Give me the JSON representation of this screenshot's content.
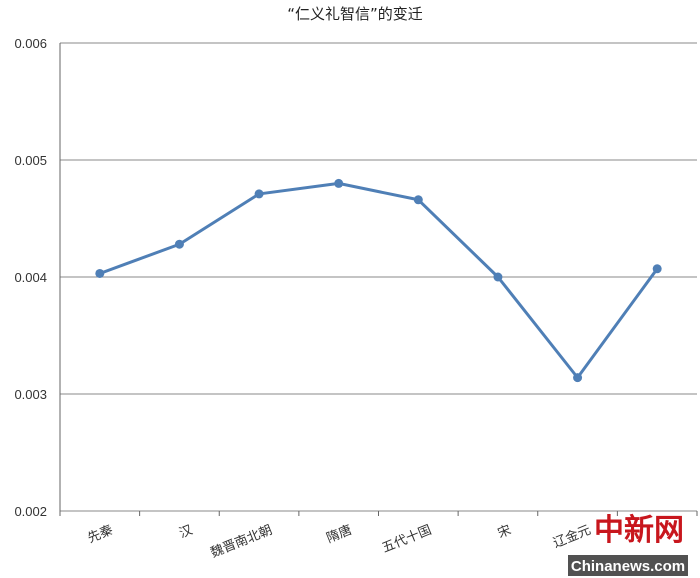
{
  "chart_data": {
    "type": "line",
    "title": "“仁义礼智信”的变迁",
    "xlabel": "",
    "ylabel": "",
    "categories": [
      "先秦",
      "汉",
      "魏晋南北朝",
      "隋唐",
      "五代十国",
      "宋",
      "辽金元",
      ""
    ],
    "y_ticks": [
      "0.002",
      "0.003",
      "0.004",
      "0.005",
      "0.006"
    ],
    "series": [
      {
        "values": [
          0.00403,
          0.00428,
          0.00471,
          0.0048,
          0.00466,
          0.004,
          0.00314,
          0.00407
        ]
      }
    ],
    "ylim": [
      0.002,
      0.006
    ],
    "grid": true,
    "legend": "none",
    "line_color": "#4f7fb6"
  },
  "watermark": {
    "cn_text": "中新网",
    "en_text": "Chinanews.com",
    "color": "#c8161d"
  }
}
